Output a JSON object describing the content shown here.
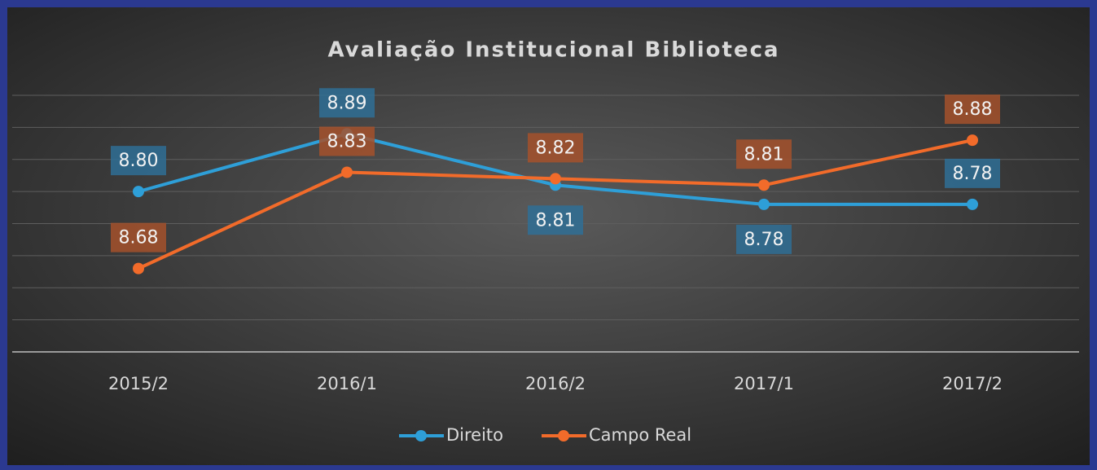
{
  "chart_data": {
    "type": "line",
    "title": "Avaliação Institucional Biblioteca",
    "categories": [
      "2015/2",
      "2016/1",
      "2016/2",
      "2017/1",
      "2017/2"
    ],
    "series": [
      {
        "name": "Direito",
        "color": "#2e9fd8",
        "values": [
          8.8,
          8.89,
          8.81,
          8.78,
          8.78
        ],
        "value_labels": [
          "8.80",
          "8.89",
          "8.81",
          "8.78",
          "8.78"
        ]
      },
      {
        "name": "Campo Real",
        "color": "#f26b2a",
        "values": [
          8.68,
          8.83,
          8.82,
          8.81,
          8.88
        ],
        "value_labels": [
          "8.68",
          "8.83",
          "8.82",
          "8.81",
          "8.88"
        ]
      }
    ],
    "ylim": [
      8.55,
      8.95
    ],
    "yticks": [
      8.55,
      8.6,
      8.65,
      8.7,
      8.75,
      8.8,
      8.85,
      8.9,
      8.95
    ],
    "grid": true,
    "legend": "bottom"
  }
}
